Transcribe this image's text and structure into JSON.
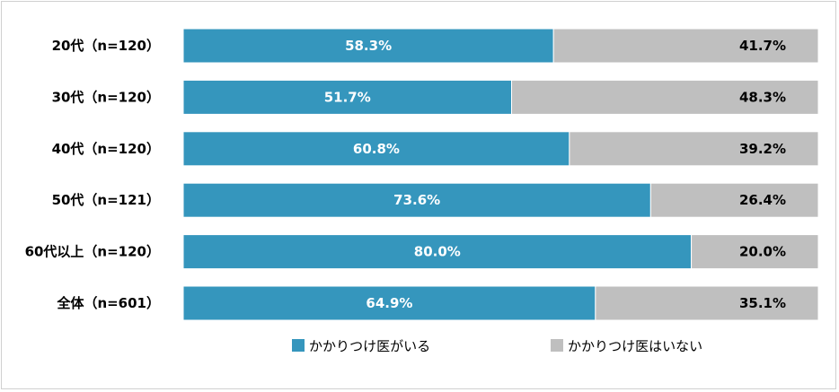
{
  "chart_data": {
    "type": "bar",
    "stacked": true,
    "orientation": "horizontal",
    "categories": [
      "20代（n=120）",
      "30代（n=120）",
      "40代（n=120）",
      "50代（n=121）",
      "60代以上（n=120）",
      "全体（n=601）"
    ],
    "series": [
      {
        "name": "かかりつけ医がいる",
        "color": "#3596bd",
        "values": [
          58.3,
          51.7,
          60.8,
          73.6,
          80.0,
          64.9
        ],
        "labels": [
          "58.3%",
          "51.7%",
          "60.8%",
          "73.6%",
          "80.0%",
          "64.9%"
        ]
      },
      {
        "name": "かかりつけ医はいない",
        "color": "#bfbfbf",
        "values": [
          41.7,
          48.3,
          39.2,
          26.4,
          20.0,
          35.1
        ],
        "labels": [
          "41.7%",
          "48.3%",
          "39.2%",
          "26.4%",
          "20.0%",
          "35.1%"
        ]
      }
    ],
    "xlim": [
      0,
      100
    ],
    "grid": false,
    "legend_position": "bottom"
  }
}
